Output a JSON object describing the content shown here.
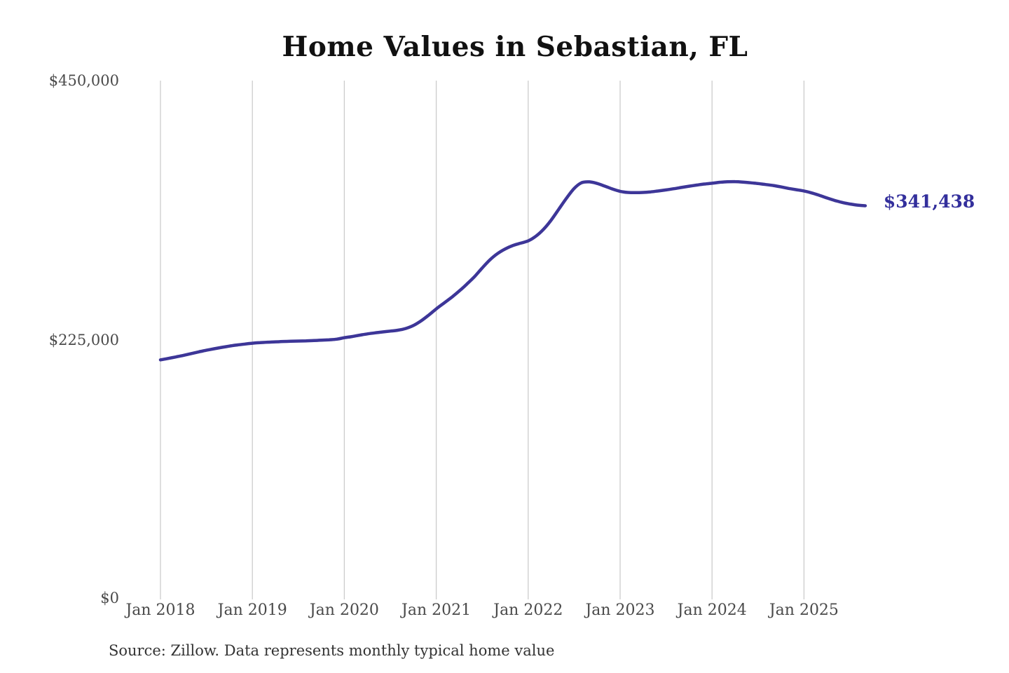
{
  "style": {
    "line_color": "#3d3698",
    "end_label_color": "#332f9c",
    "grid_color": "#cccccc",
    "title_color": "#111111",
    "tick_color": "#4a4a4a",
    "background": "#ffffff"
  },
  "chart_data": {
    "type": "line",
    "title": "Home Values in Sebastian, FL",
    "source_note": "Source: Zillow. Data represents monthly typical home value",
    "series_name": "Monthly typical home value",
    "unit": "USD",
    "xlabel": "",
    "ylabel": "",
    "ylim": [
      0,
      450000
    ],
    "grid": "vertical-only",
    "legend": "none",
    "end_label": "$341,438",
    "last_point": {
      "x": "2025-09",
      "value": 341438
    },
    "yticks": [
      {
        "value": 0,
        "label": "$0"
      },
      {
        "value": 225000,
        "label": "$225,000"
      },
      {
        "value": 450000,
        "label": "$450,000"
      }
    ],
    "xticks": [
      "Jan 2018",
      "Jan 2019",
      "Jan 2020",
      "Jan 2021",
      "Jan 2022",
      "Jan 2023",
      "Jan 2024",
      "Jan 2025"
    ],
    "x": [
      "2018-01",
      "2018-02",
      "2018-03",
      "2018-04",
      "2018-05",
      "2018-06",
      "2018-07",
      "2018-08",
      "2018-09",
      "2018-10",
      "2018-11",
      "2018-12",
      "2019-01",
      "2019-02",
      "2019-03",
      "2019-04",
      "2019-05",
      "2019-06",
      "2019-07",
      "2019-08",
      "2019-09",
      "2019-10",
      "2019-11",
      "2019-12",
      "2020-01",
      "2020-02",
      "2020-03",
      "2020-04",
      "2020-05",
      "2020-06",
      "2020-07",
      "2020-08",
      "2020-09",
      "2020-10",
      "2020-11",
      "2020-12",
      "2021-01",
      "2021-02",
      "2021-03",
      "2021-04",
      "2021-05",
      "2021-06",
      "2021-07",
      "2021-08",
      "2021-09",
      "2021-10",
      "2021-11",
      "2021-12",
      "2022-01",
      "2022-02",
      "2022-03",
      "2022-04",
      "2022-05",
      "2022-06",
      "2022-07",
      "2022-08",
      "2022-09",
      "2022-10",
      "2022-11",
      "2022-12",
      "2023-01",
      "2023-02",
      "2023-03",
      "2023-04",
      "2023-05",
      "2023-06",
      "2023-07",
      "2023-08",
      "2023-09",
      "2023-10",
      "2023-11",
      "2023-12",
      "2024-01",
      "2024-02",
      "2024-03",
      "2024-04",
      "2024-05",
      "2024-06",
      "2024-07",
      "2024-08",
      "2024-09",
      "2024-10",
      "2024-11",
      "2024-12",
      "2025-01",
      "2025-02",
      "2025-03",
      "2025-04",
      "2025-05",
      "2025-06",
      "2025-07",
      "2025-08",
      "2025-09"
    ],
    "values": [
      207800,
      209000,
      210300,
      211700,
      213200,
      214700,
      216100,
      217400,
      218600,
      219700,
      220700,
      221500,
      222200,
      222700,
      223100,
      223400,
      223700,
      223900,
      224100,
      224300,
      224500,
      224800,
      225200,
      225700,
      227000,
      228000,
      229200,
      230300,
      231200,
      232000,
      232700,
      233500,
      235000,
      237500,
      241500,
      246500,
      252000,
      257000,
      262000,
      267500,
      273500,
      280000,
      287500,
      294500,
      300000,
      304000,
      307000,
      309000,
      311000,
      315000,
      321000,
      329000,
      338500,
      348000,
      356500,
      361500,
      362200,
      360800,
      358500,
      356000,
      354000,
      353000,
      352800,
      353000,
      353500,
      354300,
      355200,
      356200,
      357300,
      358400,
      359400,
      360300,
      361000,
      361800,
      362300,
      362400,
      362000,
      361400,
      360700,
      359900,
      359000,
      357800,
      356500,
      355400,
      354300,
      352600,
      350500,
      348200,
      346100,
      344300,
      343000,
      342000,
      341438
    ]
  }
}
